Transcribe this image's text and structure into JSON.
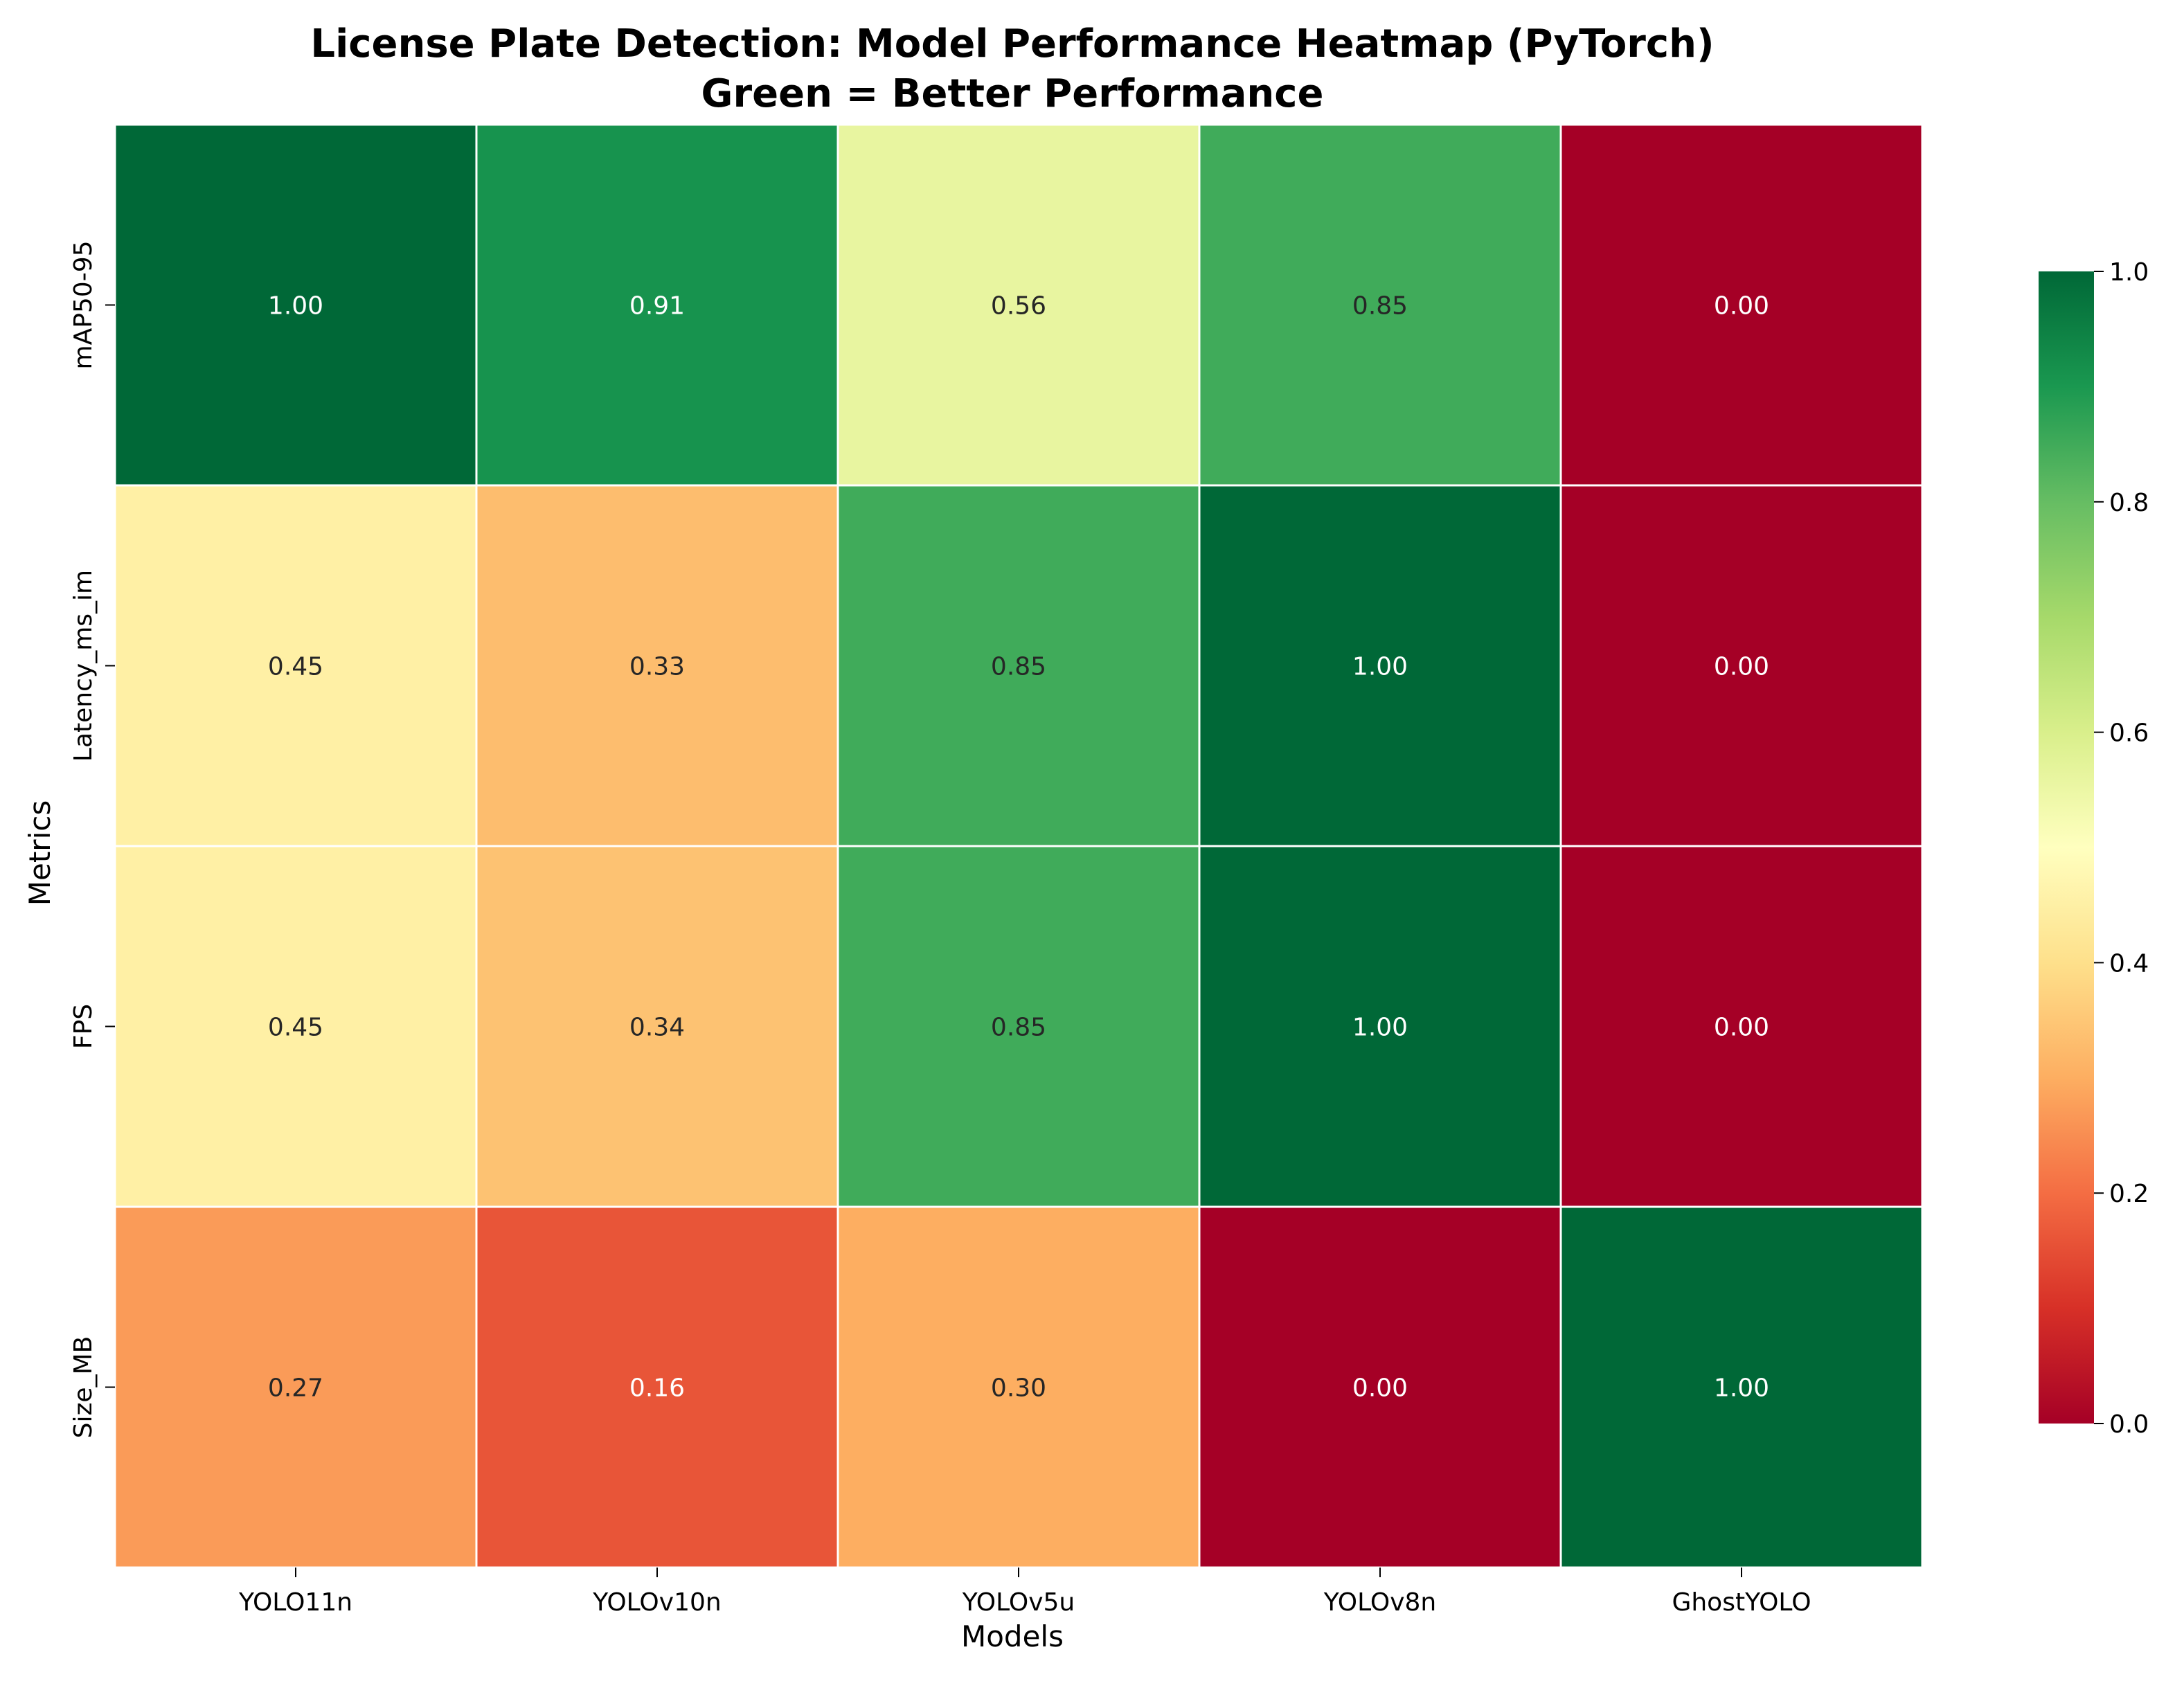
{
  "chart_data": {
    "type": "heatmap",
    "title": "License Plate Detection: Model Performance Heatmap (PyTorch)",
    "subtitle": "Green = Better Performance",
    "xlabel": "Models",
    "ylabel": "Metrics",
    "x_categories": [
      "YOLO11n",
      "YOLOv10n",
      "YOLOv5u",
      "YOLOv8n",
      "GhostYOLO"
    ],
    "y_categories": [
      "mAP50-95",
      "Latency_ms_im",
      "FPS",
      "Size_MB"
    ],
    "values": [
      [
        1.0,
        0.91,
        0.56,
        0.85,
        0.0
      ],
      [
        0.45,
        0.33,
        0.85,
        1.0,
        0.0
      ],
      [
        0.45,
        0.34,
        0.85,
        1.0,
        0.0
      ],
      [
        0.27,
        0.16,
        0.3,
        0.0,
        1.0
      ]
    ],
    "value_format": "0.00",
    "colormap": "RdYlGn",
    "colorbar": {
      "range": [
        0,
        1
      ],
      "ticks": [
        "0.0",
        "0.2",
        "0.4",
        "0.6",
        "0.8",
        "1.0"
      ]
    }
  }
}
